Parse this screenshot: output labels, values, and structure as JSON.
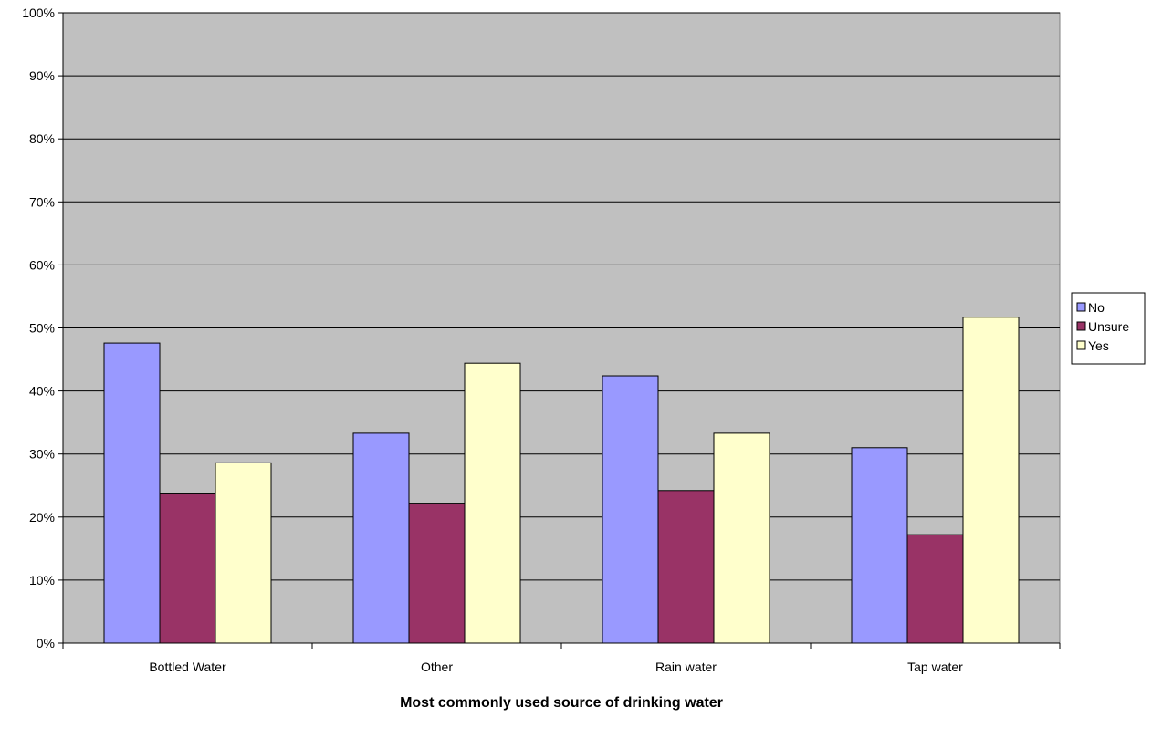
{
  "chart_data": {
    "type": "bar",
    "title": "",
    "xlabel": "Most commonly used source of drinking water",
    "ylabel": "",
    "categories": [
      "Bottled Water",
      "Other",
      "Rain water",
      "Tap water"
    ],
    "series": [
      {
        "name": "No",
        "color": "#9999ff",
        "values": [
          47.6,
          33.3,
          42.4,
          31.0
        ]
      },
      {
        "name": "Unsure",
        "color": "#993366",
        "values": [
          23.8,
          22.2,
          24.2,
          17.2
        ]
      },
      {
        "name": "Yes",
        "color": "#ffffcc",
        "values": [
          28.6,
          44.4,
          33.3,
          51.7
        ]
      }
    ],
    "ylim": [
      0,
      100
    ],
    "yticks": [
      0,
      10,
      20,
      30,
      40,
      50,
      60,
      70,
      80,
      90,
      100
    ],
    "ytick_suffix": "%",
    "grid": true,
    "plot_background": "#c0c0c0",
    "legend_position": "right"
  }
}
